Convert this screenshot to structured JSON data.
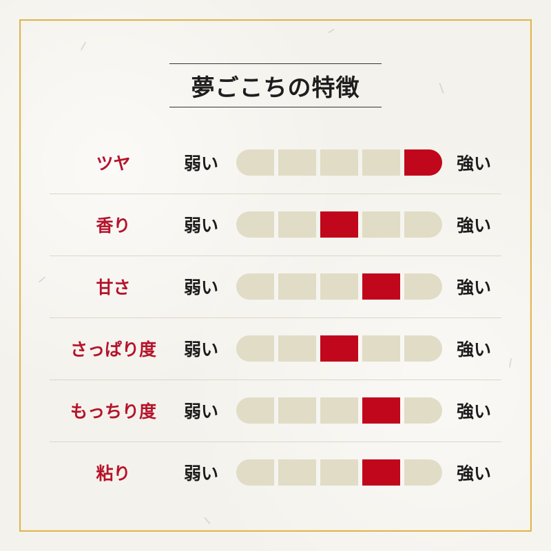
{
  "title": "夢ごこちの特徴",
  "scale_labels": {
    "low": "弱い",
    "high": "強い"
  },
  "levels_total": 5,
  "colors": {
    "accent": "#c0071c",
    "segment_off": "#e1dcc6",
    "label": "#b5132b",
    "frame_gold": "#d9b658"
  },
  "attributes": [
    {
      "label": "ツヤ",
      "level": 5
    },
    {
      "label": "香り",
      "level": 3
    },
    {
      "label": "甘さ",
      "level": 4
    },
    {
      "label": "さっぱり度",
      "level": 3
    },
    {
      "label": "もっちり度",
      "level": 4
    },
    {
      "label": "粘り",
      "level": 4
    }
  ]
}
